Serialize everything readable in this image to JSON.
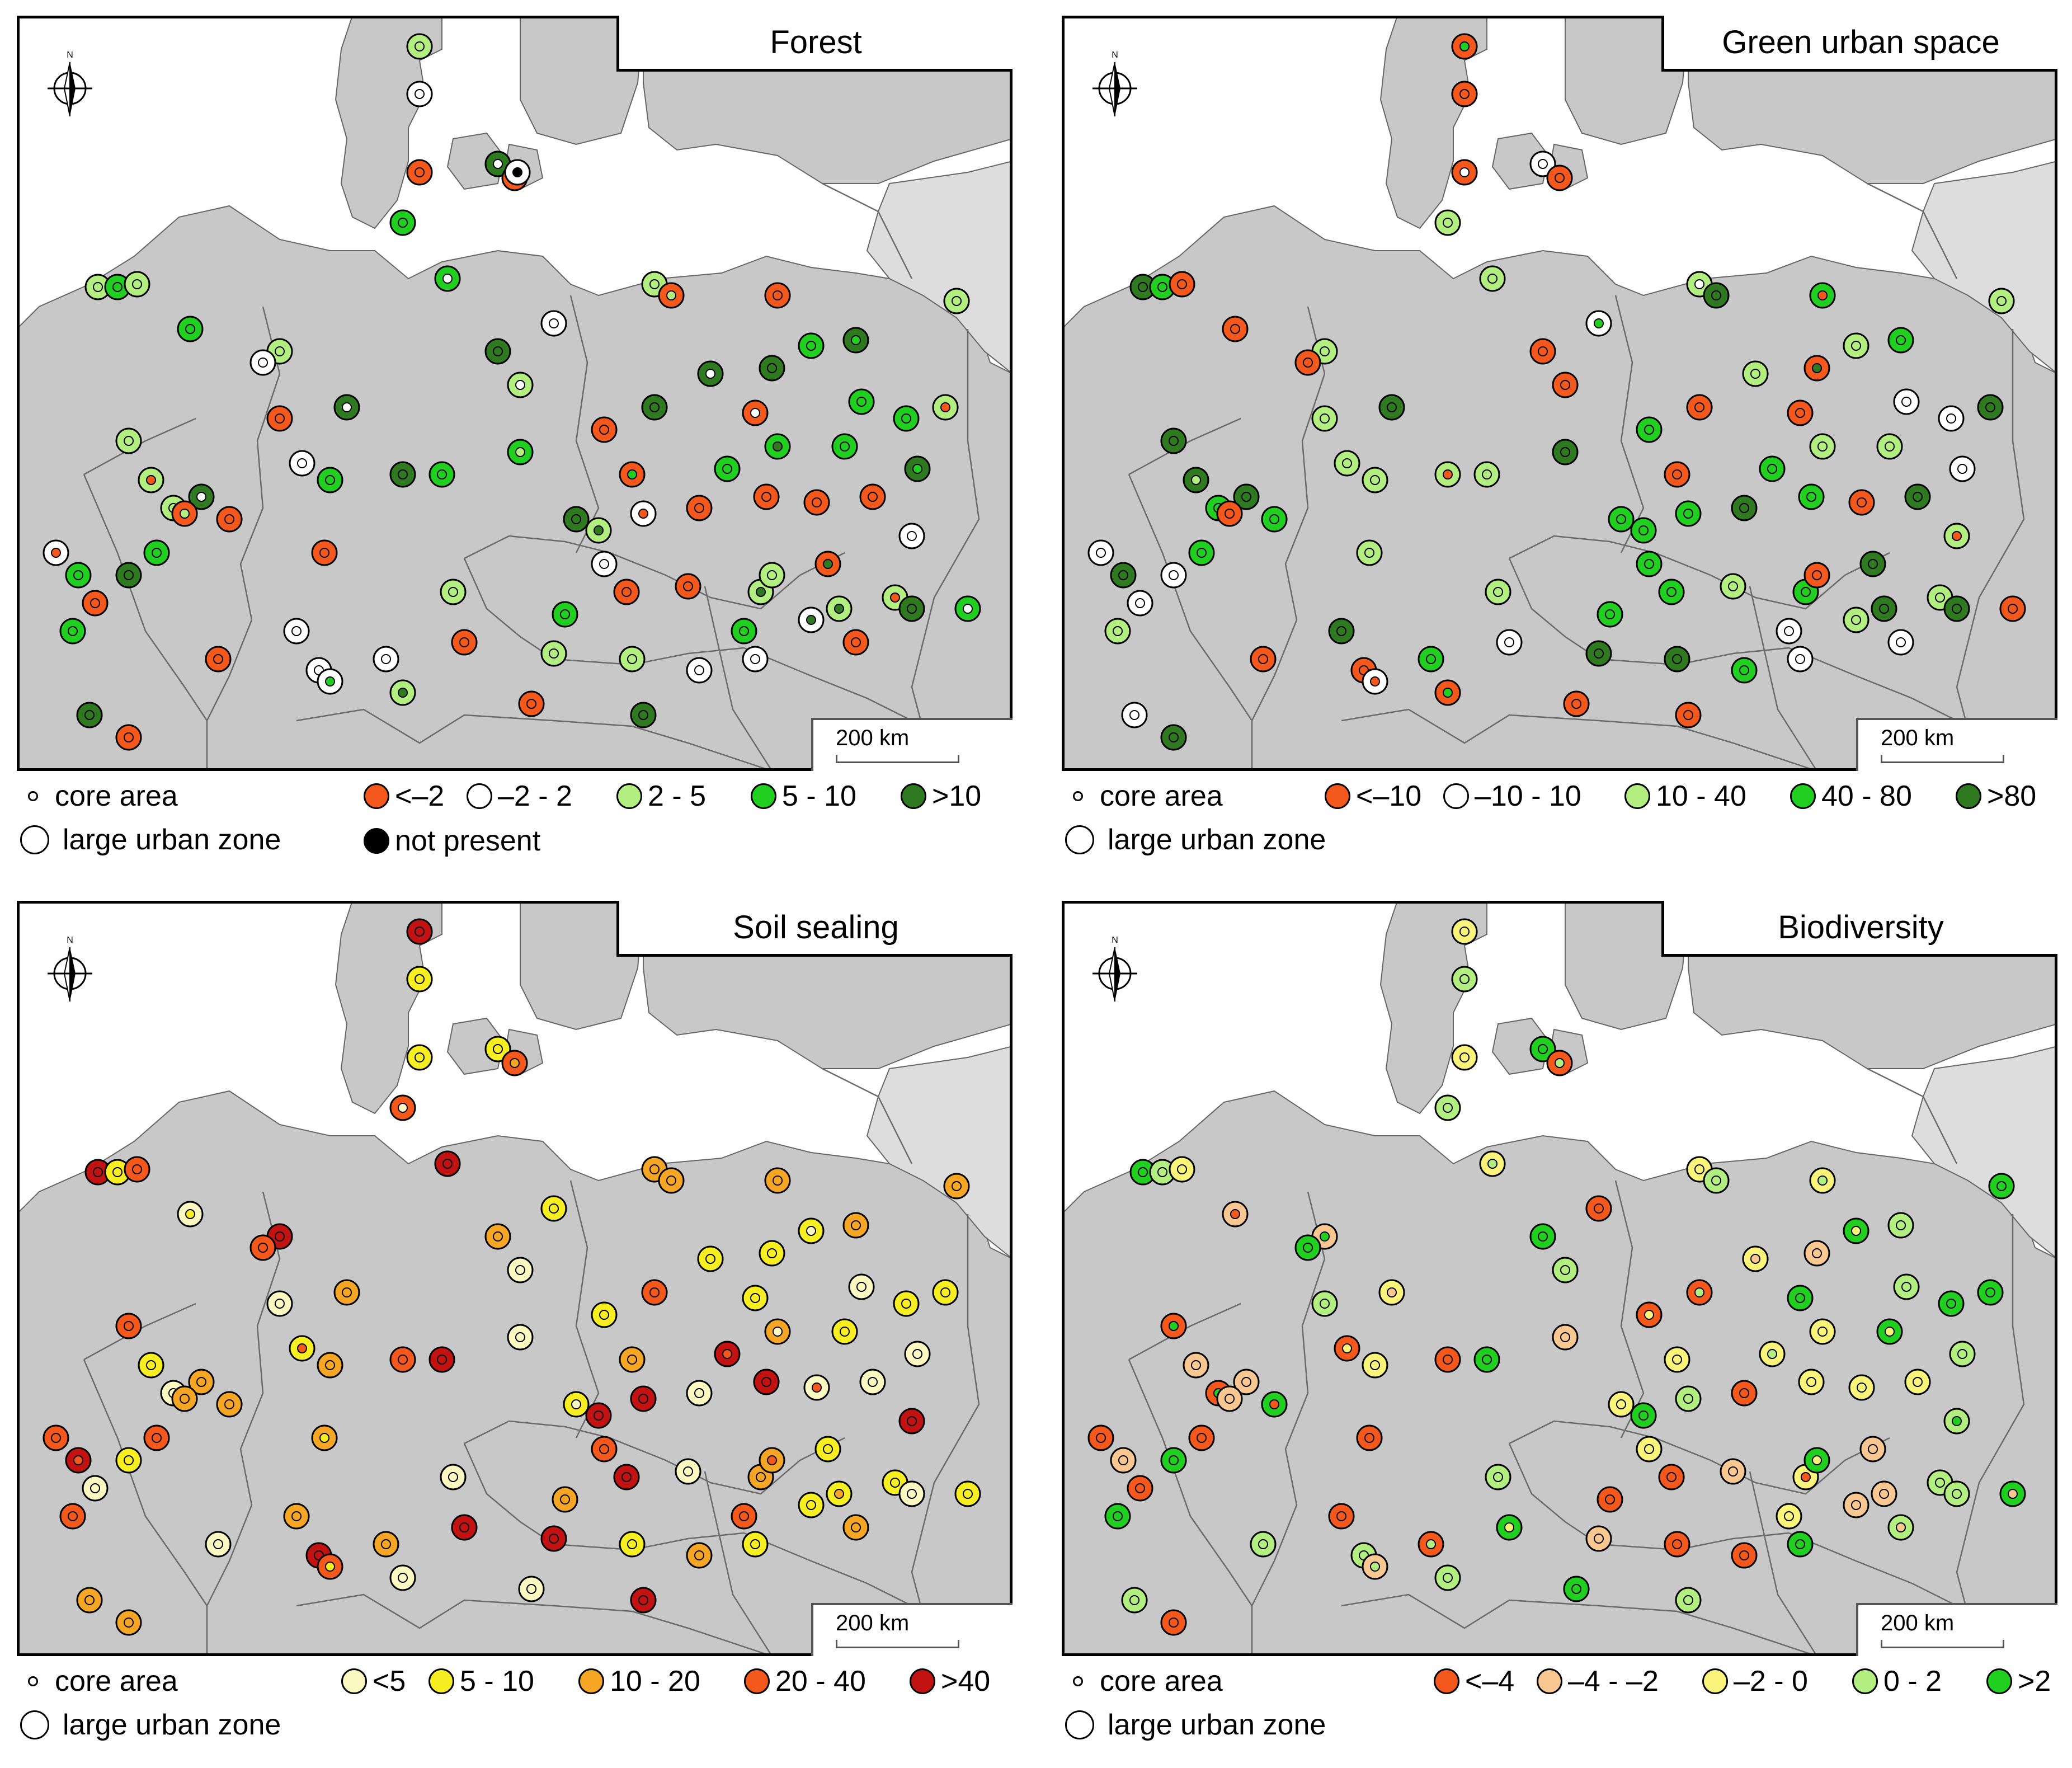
{
  "panels": [
    {
      "title": "Forest",
      "classes": [
        {
          "label": "<–2",
          "color": "#f4581d"
        },
        {
          "label": "–2 - 2",
          "color": "#ffffff"
        },
        {
          "label": "2 - 5",
          "color": "#b3ee80"
        },
        {
          "label": "5 - 10",
          "color": "#21cf21"
        },
        {
          "label": ">10",
          "color": "#2f7a21"
        },
        {
          "label": "not present",
          "color": "#000000"
        }
      ],
      "points": [
        [
          0.27,
          0.99,
          1,
          1
        ],
        [
          0.27,
          0.935,
          0,
          0
        ],
        [
          0.27,
          0.865,
          2,
          1
        ],
        [
          0.25,
          0.78,
          3,
          3
        ],
        [
          0.355,
          0.865,
          2,
          4
        ],
        [
          0.365,
          0.855,
          1,
          5
        ],
        [
          0.09,
          0.69,
          4,
          4
        ],
        [
          0.05,
          0.635,
          1,
          1
        ],
        [
          0.07,
          0.635,
          1,
          1
        ],
        [
          0.1,
          0.64,
          1,
          1
        ],
        [
          0.21,
          0.57,
          3,
          3
        ],
        [
          0.42,
          0.765,
          4,
          4
        ],
        [
          0.32,
          0.705,
          3,
          4
        ],
        [
          0.435,
          0.625,
          2,
          4
        ],
        [
          0.565,
          0.83,
          2,
          2
        ],
        [
          0.485,
          0.66,
          1,
          1
        ],
        [
          0.385,
          0.655,
          3,
          0
        ],
        [
          0.385,
          0.655,
          3,
          0
        ],
        [
          0.255,
          0.6,
          1,
          1
        ],
        [
          0.205,
          0.56,
          1,
          1
        ],
        [
          0.61,
          0.81,
          2,
          2
        ],
        [
          0.665,
          0.83,
          1,
          1
        ],
        [
          0.82,
          0.725,
          2,
          2
        ],
        [
          0.95,
          0.68,
          2,
          1
        ],
        [
          0.545,
          0.66,
          3,
          3
        ],
        [
          0.6,
          0.74,
          3,
          4
        ],
        [
          0.74,
          0.56,
          3,
          3
        ],
        [
          0.65,
          0.485,
          0,
          4
        ],
        [
          0.69,
          0.485,
          4,
          4
        ],
        [
          0.805,
          0.475,
          0,
          4
        ],
        [
          0.86,
          0.455,
          4,
          4
        ],
        [
          0.875,
          0.425,
          3,
          2
        ],
        [
          0.935,
          0.415,
          1,
          2
        ],
        [
          0.72,
          0.47,
          2,
          4
        ],
        [
          0.505,
          0.465,
          2,
          4
        ],
        [
          0.535,
          0.455,
          2,
          1
        ],
        [
          0.535,
          0.42,
          3,
          0
        ],
        [
          0.485,
          0.425,
          2,
          2
        ],
        [
          0.515,
          0.41,
          3,
          3
        ],
        [
          0.39,
          0.47,
          3,
          0
        ],
        [
          0.41,
          0.46,
          3,
          0
        ],
        [
          0.565,
          0.405,
          4,
          1
        ]
      ]
    },
    {
      "title": "Green urban space",
      "classes": [
        {
          "label": "<–10",
          "color": "#f4581d"
        },
        {
          "label": "–10 - 10",
          "color": "#ffffff"
        },
        {
          "label": "10 - 40",
          "color": "#b3ee80"
        },
        {
          "label": "40 - 80",
          "color": "#21cf21"
        },
        {
          "label": ">80",
          "color": "#2f7a21"
        }
      ],
      "points": []
    },
    {
      "title": "Soil sealing",
      "classes": [
        {
          "label": "<5",
          "color": "#fbf8c2"
        },
        {
          "label": "5 - 10",
          "color": "#f8ef23"
        },
        {
          "label": "10 - 20",
          "color": "#f6a625"
        },
        {
          "label": "20 - 40",
          "color": "#f4581d"
        },
        {
          "label": ">40",
          "color": "#c31212"
        }
      ],
      "points": []
    },
    {
      "title": "Biodiversity",
      "classes": [
        {
          "label": "<–4",
          "color": "#f4581d"
        },
        {
          "label": "–4 - –2",
          "color": "#f9c892"
        },
        {
          "label": "–2 - 0",
          "color": "#fbf47a"
        },
        {
          "label": "0 - 2",
          "color": "#b3ee80"
        },
        {
          "label": ">2",
          "color": "#21cf21"
        }
      ],
      "points": []
    }
  ],
  "legend": {
    "core_area": "core area",
    "large_urban_zone": "large urban zone"
  },
  "scale_label": "200 km",
  "compass_letter": "N"
}
